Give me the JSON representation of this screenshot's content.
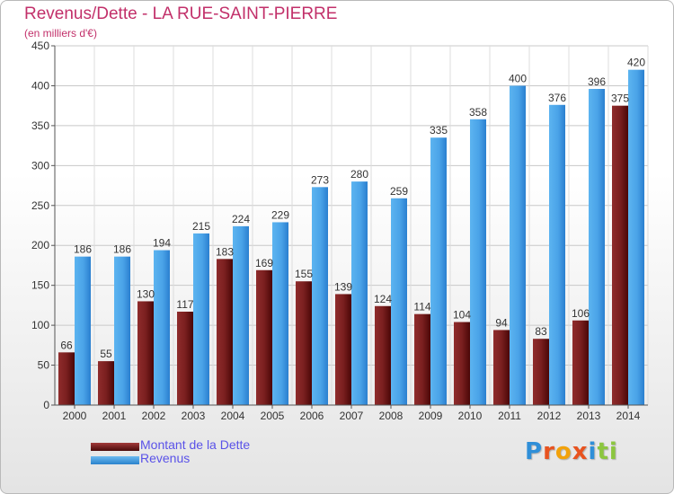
{
  "header": {
    "title": "Revenus/Dette - LA RUE-SAINT-PIERRE",
    "subtitle": "(en milliers d'€)"
  },
  "legend": {
    "items": [
      {
        "label": "Montant de la Dette",
        "color": "#7a1f1f"
      },
      {
        "label": "Revenus",
        "color": "#4aa3e8"
      }
    ]
  },
  "logo": {
    "letters": [
      "P",
      "r",
      "o",
      "x",
      "i",
      "t",
      "i"
    ],
    "colors": [
      "#2f8fd8",
      "#e8531f",
      "#f2a20c",
      "#e8531f",
      "#2f8fd8",
      "#8cc63f",
      "#8cc63f"
    ]
  },
  "chart_data": {
    "type": "bar",
    "title": "Revenus/Dette - LA RUE-SAINT-PIERRE",
    "subtitle": "(en milliers d'€)",
    "categories": [
      "2000",
      "2001",
      "2002",
      "2003",
      "2004",
      "2005",
      "2006",
      "2007",
      "2008",
      "2009",
      "2010",
      "2011",
      "2012",
      "2013",
      "2014"
    ],
    "series": [
      {
        "name": "Montant de la Dette",
        "color": "#7a1f1f",
        "values": [
          66,
          55,
          130,
          117,
          183,
          169,
          155,
          139,
          124,
          114,
          104,
          94,
          83,
          106,
          375
        ]
      },
      {
        "name": "Revenus",
        "color": "#4aa3e8",
        "values": [
          186,
          186,
          194,
          215,
          224,
          229,
          273,
          280,
          259,
          335,
          358,
          400,
          376,
          396,
          420
        ]
      }
    ],
    "ylim": [
      0,
      450
    ],
    "yticks": [
      0,
      50,
      100,
      150,
      200,
      250,
      300,
      350,
      400,
      450
    ],
    "grid": true,
    "legend_position": "bottom-left"
  }
}
